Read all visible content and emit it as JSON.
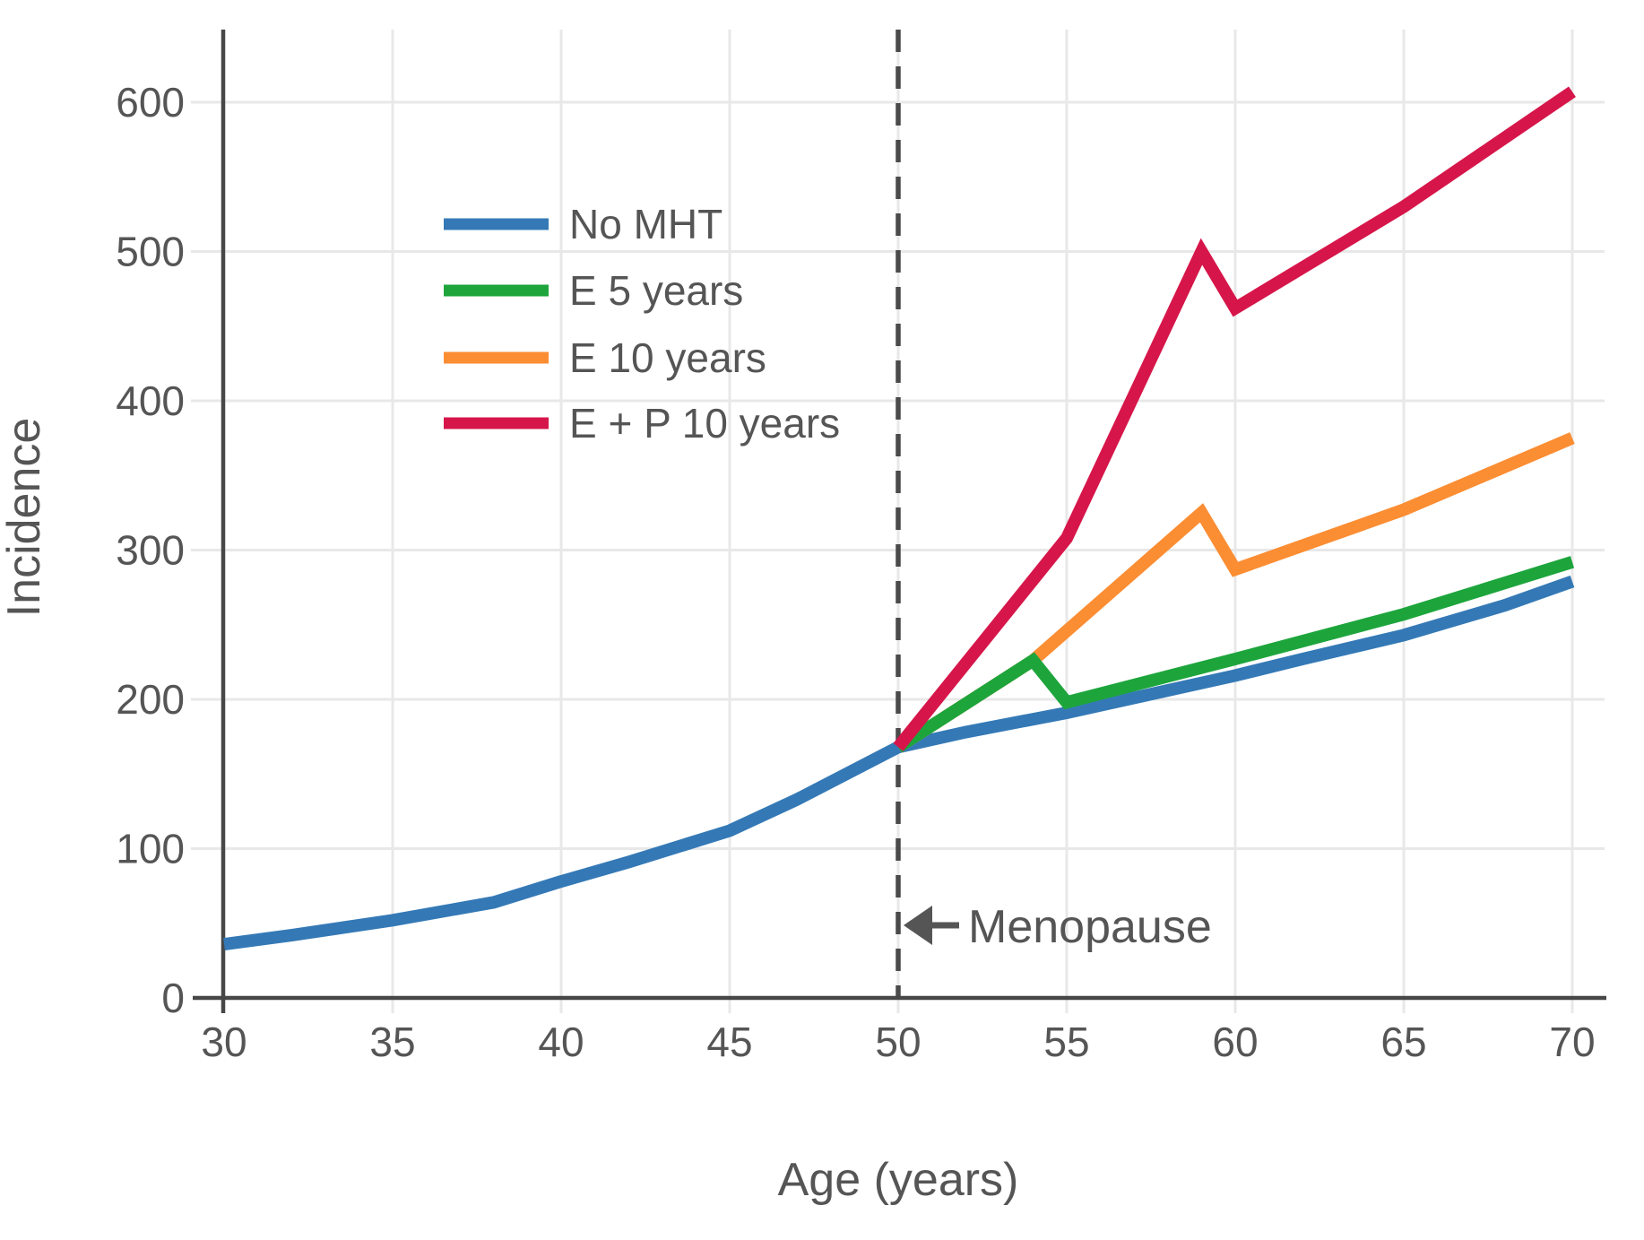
{
  "chart_data": {
    "type": "line",
    "title": "",
    "xlabel": "Age (years)",
    "ylabel": "Incidence",
    "x_ticks": [
      30,
      35,
      40,
      45,
      50,
      55,
      60,
      65,
      70
    ],
    "y_ticks": [
      0,
      100,
      200,
      300,
      400,
      500,
      600
    ],
    "xlim": [
      30,
      70
    ],
    "ylim": [
      0,
      650
    ],
    "grid": true,
    "legend_position": "upper-left-inside",
    "series": [
      {
        "name": "No MHT",
        "color": "#3479b6",
        "points": [
          [
            30,
            36
          ],
          [
            32,
            42
          ],
          [
            35,
            52
          ],
          [
            38,
            64
          ],
          [
            40,
            78
          ],
          [
            42,
            91
          ],
          [
            45,
            112
          ],
          [
            47,
            133
          ],
          [
            50,
            168
          ],
          [
            52,
            178
          ],
          [
            55,
            191
          ],
          [
            58,
            206
          ],
          [
            60,
            216
          ],
          [
            62,
            227
          ],
          [
            65,
            243
          ],
          [
            68,
            263
          ],
          [
            70,
            279
          ]
        ]
      },
      {
        "name": "E 5 years",
        "color": "#1da53c",
        "points": [
          [
            50,
            168
          ],
          [
            54,
            226
          ],
          [
            55,
            198
          ],
          [
            60,
            227
          ],
          [
            65,
            257
          ],
          [
            70,
            292
          ]
        ]
      },
      {
        "name": "E 10 years",
        "color": "#fb8d33",
        "points": [
          [
            50,
            168
          ],
          [
            54,
            226
          ],
          [
            59,
            325
          ],
          [
            60,
            287
          ],
          [
            65,
            327
          ],
          [
            70,
            375
          ]
        ]
      },
      {
        "name": "E + P 10 years",
        "color": "#d6164a",
        "points": [
          [
            50,
            168
          ],
          [
            55,
            308
          ],
          [
            59,
            500
          ],
          [
            60,
            462
          ],
          [
            65,
            530
          ],
          [
            70,
            607
          ]
        ]
      }
    ],
    "annotation": {
      "text": "Menopause",
      "at_x": 50,
      "at_y": 49
    },
    "reference_line": {
      "x": 50,
      "style": "dashed"
    }
  },
  "colors": {
    "axis": "#474747",
    "grid": "#e8e8e8",
    "dashed_line": "#4a4a4a",
    "text": "#555555",
    "background": "#ffffff"
  }
}
